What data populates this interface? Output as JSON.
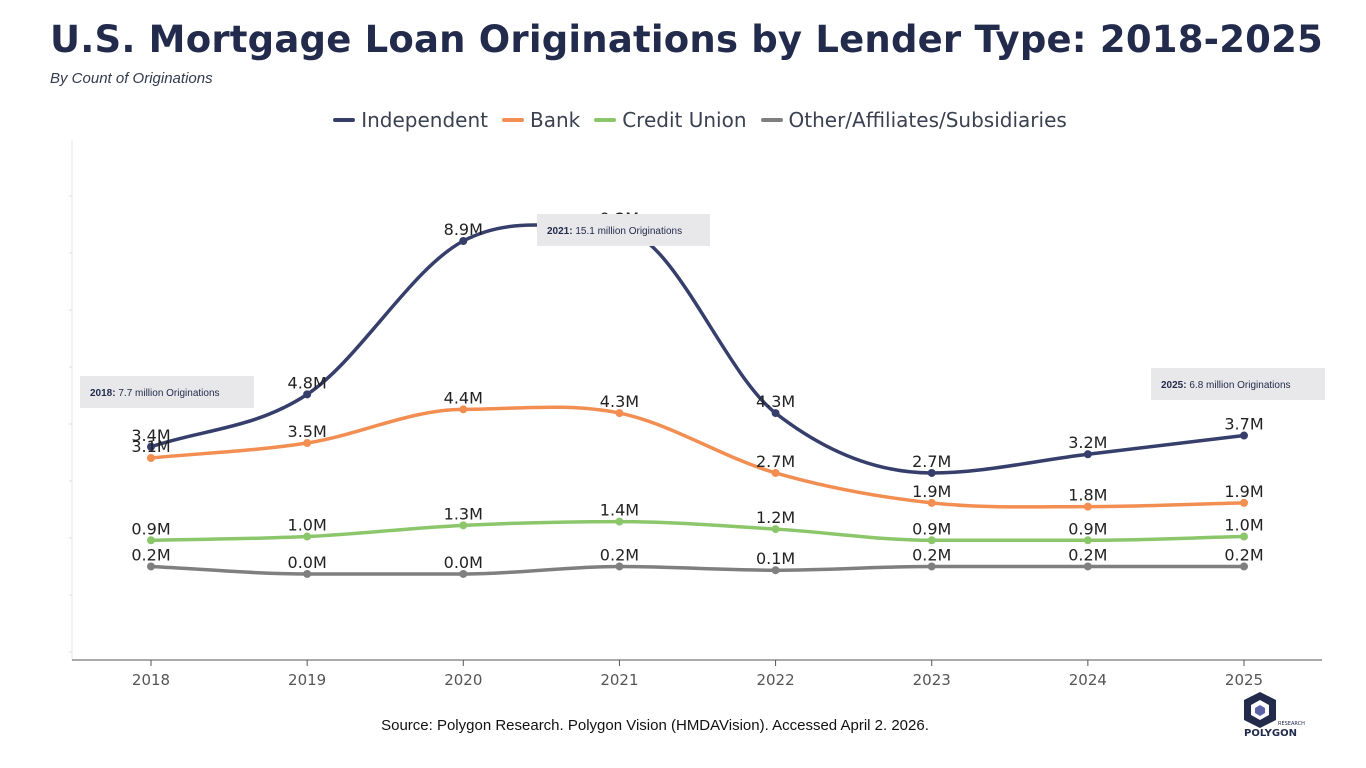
{
  "header": {
    "title": "U.S. Mortgage Loan Originations by Lender Type: 2018-2025",
    "subtitle": "By Count of Originations"
  },
  "footer": {
    "source": "Source: Polygon Research. Polygon Vision (HMDAVision). Accessed April 2. 2026.",
    "logo_text": "POLYGON",
    "logo_small_text": "RESEARCH"
  },
  "chart_data": {
    "type": "line",
    "x": [
      "2018",
      "2019",
      "2020",
      "2021",
      "2022",
      "2023",
      "2024",
      "2025"
    ],
    "ylim": [
      -2.3,
      11.6
    ],
    "grid": false,
    "legend_position": "top-center",
    "series": [
      {
        "name": "Independent",
        "color": "#363e6b",
        "values": [
          3.4,
          4.8,
          8.9,
          9.2,
          4.3,
          2.7,
          3.2,
          3.7
        ],
        "labels": [
          "3.4M",
          "4.8M",
          "8.9M",
          "9.2M",
          "4.3M",
          "2.7M",
          "3.2M",
          "3.7M"
        ]
      },
      {
        "name": "Bank",
        "color": "#f28e52",
        "values": [
          3.1,
          3.5,
          4.4,
          4.3,
          2.7,
          1.9,
          1.8,
          1.9
        ],
        "labels": [
          "3.1M",
          "3.5M",
          "4.4M",
          "4.3M",
          "2.7M",
          "1.9M",
          "1.8M",
          "1.9M"
        ]
      },
      {
        "name": "Credit Union",
        "color": "#8cc66b",
        "values": [
          0.9,
          1.0,
          1.3,
          1.4,
          1.2,
          0.9,
          0.9,
          1.0
        ],
        "labels": [
          "0.9M",
          "1.0M",
          "1.3M",
          "1.4M",
          "1.2M",
          "0.9M",
          "0.9M",
          "1.0M"
        ]
      },
      {
        "name": "Other/Affiliates/Subsidiaries",
        "color": "#7f7f7f",
        "values": [
          0.2,
          0.0,
          0.0,
          0.2,
          0.1,
          0.2,
          0.2,
          0.2
        ],
        "labels": [
          "0.2M",
          "0.0M",
          "0.0M",
          "0.2M",
          "0.1M",
          "0.2M",
          "0.2M",
          "0.2M"
        ]
      }
    ],
    "annotations": [
      {
        "year": "2018",
        "bold": "2018:",
        "text": " 7.7 million Originations"
      },
      {
        "year": "2021",
        "bold": "2021:",
        "text": " 15.1 million Originations"
      },
      {
        "year": "2025",
        "bold": "2025:",
        "text": " 6.8 million Originations"
      }
    ]
  }
}
